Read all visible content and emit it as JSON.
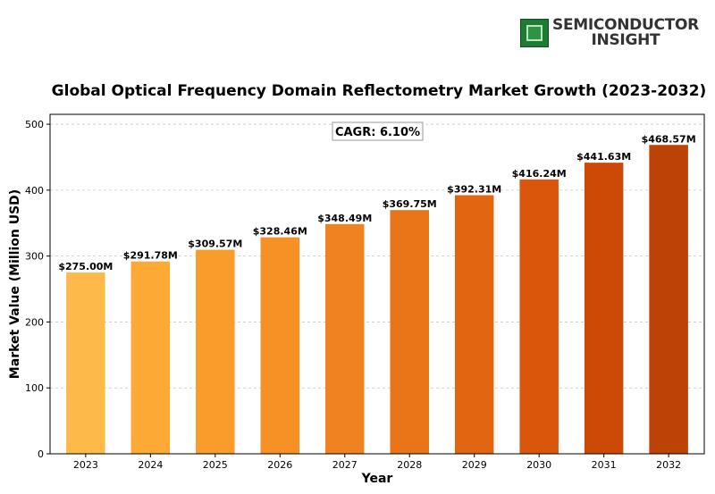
{
  "logo": {
    "line1": "SEMICONDUCTOR",
    "line2": "INSIGHT"
  },
  "chart_data": {
    "type": "bar",
    "title": "Global Optical Frequency Domain Reflectometry Market Growth (2023-2032)",
    "xlabel": "Year",
    "ylabel": "Market Value (Million USD)",
    "ylim": [
      0,
      515
    ],
    "yticks": [
      0,
      100,
      200,
      300,
      400,
      500
    ],
    "grid": true,
    "categories": [
      "2023",
      "2024",
      "2025",
      "2026",
      "2027",
      "2028",
      "2029",
      "2030",
      "2031",
      "2032"
    ],
    "values": [
      275.0,
      291.78,
      309.57,
      328.46,
      348.49,
      369.75,
      392.31,
      416.24,
      441.63,
      468.57
    ],
    "data_labels": [
      "$275.00M",
      "$291.78M",
      "$309.57M",
      "$328.46M",
      "$348.49M",
      "$369.75M",
      "$392.31M",
      "$416.24M",
      "$441.63M",
      "$468.57M"
    ],
    "colors": [
      "#FDB94A",
      "#FCA936",
      "#FA9C2C",
      "#F79125",
      "#F18220",
      "#EA7418",
      "#E26611",
      "#D9560B",
      "#CC4A06",
      "#BC4205"
    ],
    "annotation": "CAGR: 6.10%"
  }
}
